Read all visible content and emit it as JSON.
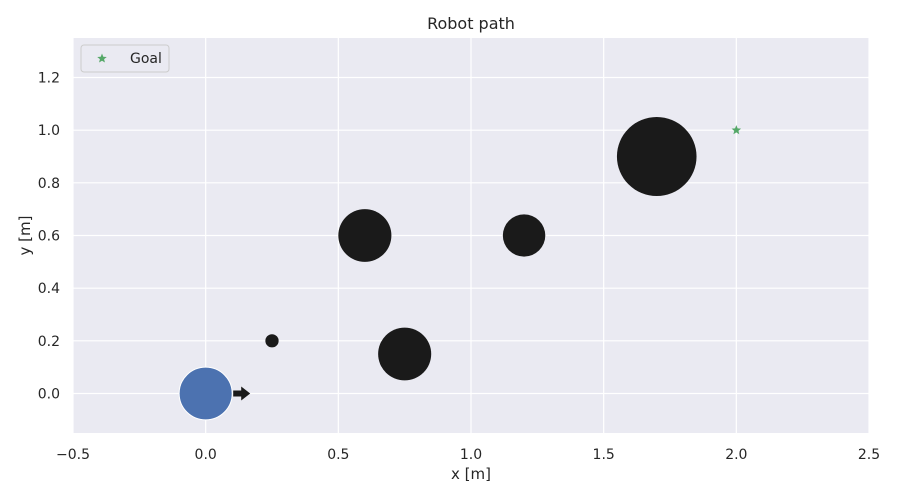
{
  "chart_data": {
    "type": "scatter",
    "title": "Robot path",
    "xlabel": "x [m]",
    "ylabel": "y [m]",
    "xlim": [
      -0.5,
      2.5
    ],
    "ylim": [
      -0.15,
      1.35
    ],
    "xticks": [
      -0.5,
      0.0,
      0.5,
      1.0,
      1.5,
      2.0,
      2.5
    ],
    "xtick_labels": [
      "−0.5",
      "0.0",
      "0.5",
      "1.0",
      "1.5",
      "2.0",
      "2.5"
    ],
    "yticks": [
      0.0,
      0.2,
      0.4,
      0.6,
      0.8,
      1.0,
      1.2
    ],
    "ytick_labels": [
      "0.0",
      "0.2",
      "0.4",
      "0.6",
      "0.8",
      "1.0",
      "1.2"
    ],
    "grid": true,
    "legend_position": "top-left",
    "colors": {
      "background": "#eaeaf2",
      "grid": "#ffffff",
      "robot": "#4c72b0",
      "obstacle": "#1a1a1a",
      "goal": "#55a868",
      "heading": "#1a1a1a"
    },
    "robot": {
      "x": 0.0,
      "y": 0.0,
      "radius": 0.1,
      "heading_deg": 0
    },
    "obstacles": [
      {
        "x": 0.25,
        "y": 0.2,
        "radius": 0.025
      },
      {
        "x": 0.6,
        "y": 0.6,
        "radius": 0.1
      },
      {
        "x": 0.75,
        "y": 0.15,
        "radius": 0.1
      },
      {
        "x": 1.2,
        "y": 0.6,
        "radius": 0.08
      },
      {
        "x": 1.7,
        "y": 0.9,
        "radius": 0.15
      }
    ],
    "goal": {
      "x": 2.0,
      "y": 1.0
    },
    "legend": [
      {
        "label": "Goal",
        "marker": "star"
      }
    ]
  }
}
